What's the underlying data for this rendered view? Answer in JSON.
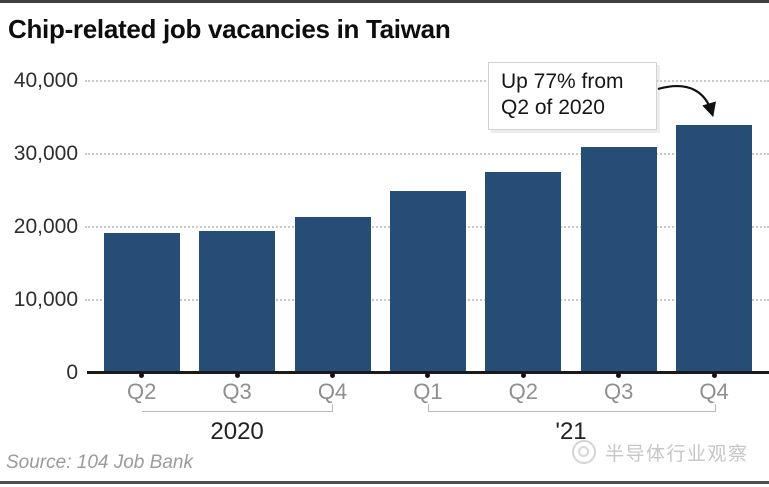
{
  "header": {
    "title": "Chip-related job vacancies in Taiwan"
  },
  "footer": {
    "source": "Source: 104 Job Bank",
    "watermark": "半导体行业观察"
  },
  "annotation": {
    "line1": "Up 77% from",
    "line2": "Q2 of 2020"
  },
  "colors": {
    "bar": "#254d76",
    "grid": "#c9c9c9",
    "axis": "#1a1a1a",
    "xlabel": "#8f8f8f",
    "ylabel": "#2e2e2e",
    "source": "#9b9b9b",
    "watermark": "#c6c6c6"
  },
  "chart_data": {
    "type": "bar",
    "title": "Chip-related job vacancies in Taiwan",
    "categories": [
      "Q2",
      "Q3",
      "Q4",
      "Q1",
      "Q2",
      "Q3",
      "Q4"
    ],
    "values": [
      19200,
      19500,
      21400,
      25000,
      27500,
      31000,
      34000
    ],
    "groups": [
      {
        "label": "2020",
        "from": 0,
        "to": 2
      },
      {
        "label": "'21",
        "from": 3,
        "to": 6
      }
    ],
    "xlabel": "",
    "ylabel": "",
    "ylim": [
      0,
      40000
    ],
    "yticks": [
      0,
      10000,
      20000,
      30000,
      40000
    ],
    "ytick_labels": [
      "0",
      "10,000",
      "20,000",
      "30,000",
      "40,000"
    ],
    "grid": "horizontal-dotted",
    "legend": "none",
    "annotation": {
      "text": "Up 77% from Q2 of 2020",
      "target_category_index": 6
    }
  }
}
